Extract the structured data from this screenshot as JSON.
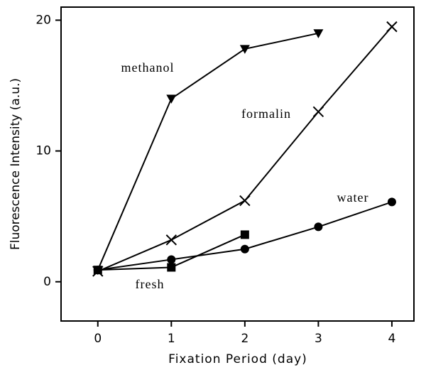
{
  "chart_data": {
    "type": "line",
    "x_label": "Fixation Period (day)",
    "y_label": "Fluorescence Intensity (a.u.)",
    "x": [
      0,
      1,
      2,
      3,
      4
    ],
    "series": [
      {
        "name": "methanol",
        "color": "#000000",
        "marker": "triangle-down",
        "values": [
          0.9,
          14,
          17.8,
          19.0,
          null
        ]
      },
      {
        "name": "formalin",
        "color": "#000000",
        "marker": "x",
        "values": [
          0.8,
          3.2,
          6.2,
          13,
          19.5
        ]
      },
      {
        "name": "water",
        "color": "#000000",
        "marker": "circle",
        "values": [
          0.9,
          1.7,
          2.5,
          4.2,
          6.1
        ]
      },
      {
        "name": "fresh",
        "color": "#000000",
        "marker": "square",
        "values": [
          0.9,
          1.1,
          3.6,
          null,
          null
        ]
      }
    ],
    "xlim": [
      -0.5,
      4.3
    ],
    "xticks": [
      0,
      1,
      2,
      3,
      4
    ],
    "ylim": [
      -3,
      21
    ],
    "yticks": [
      0,
      10,
      20
    ]
  }
}
